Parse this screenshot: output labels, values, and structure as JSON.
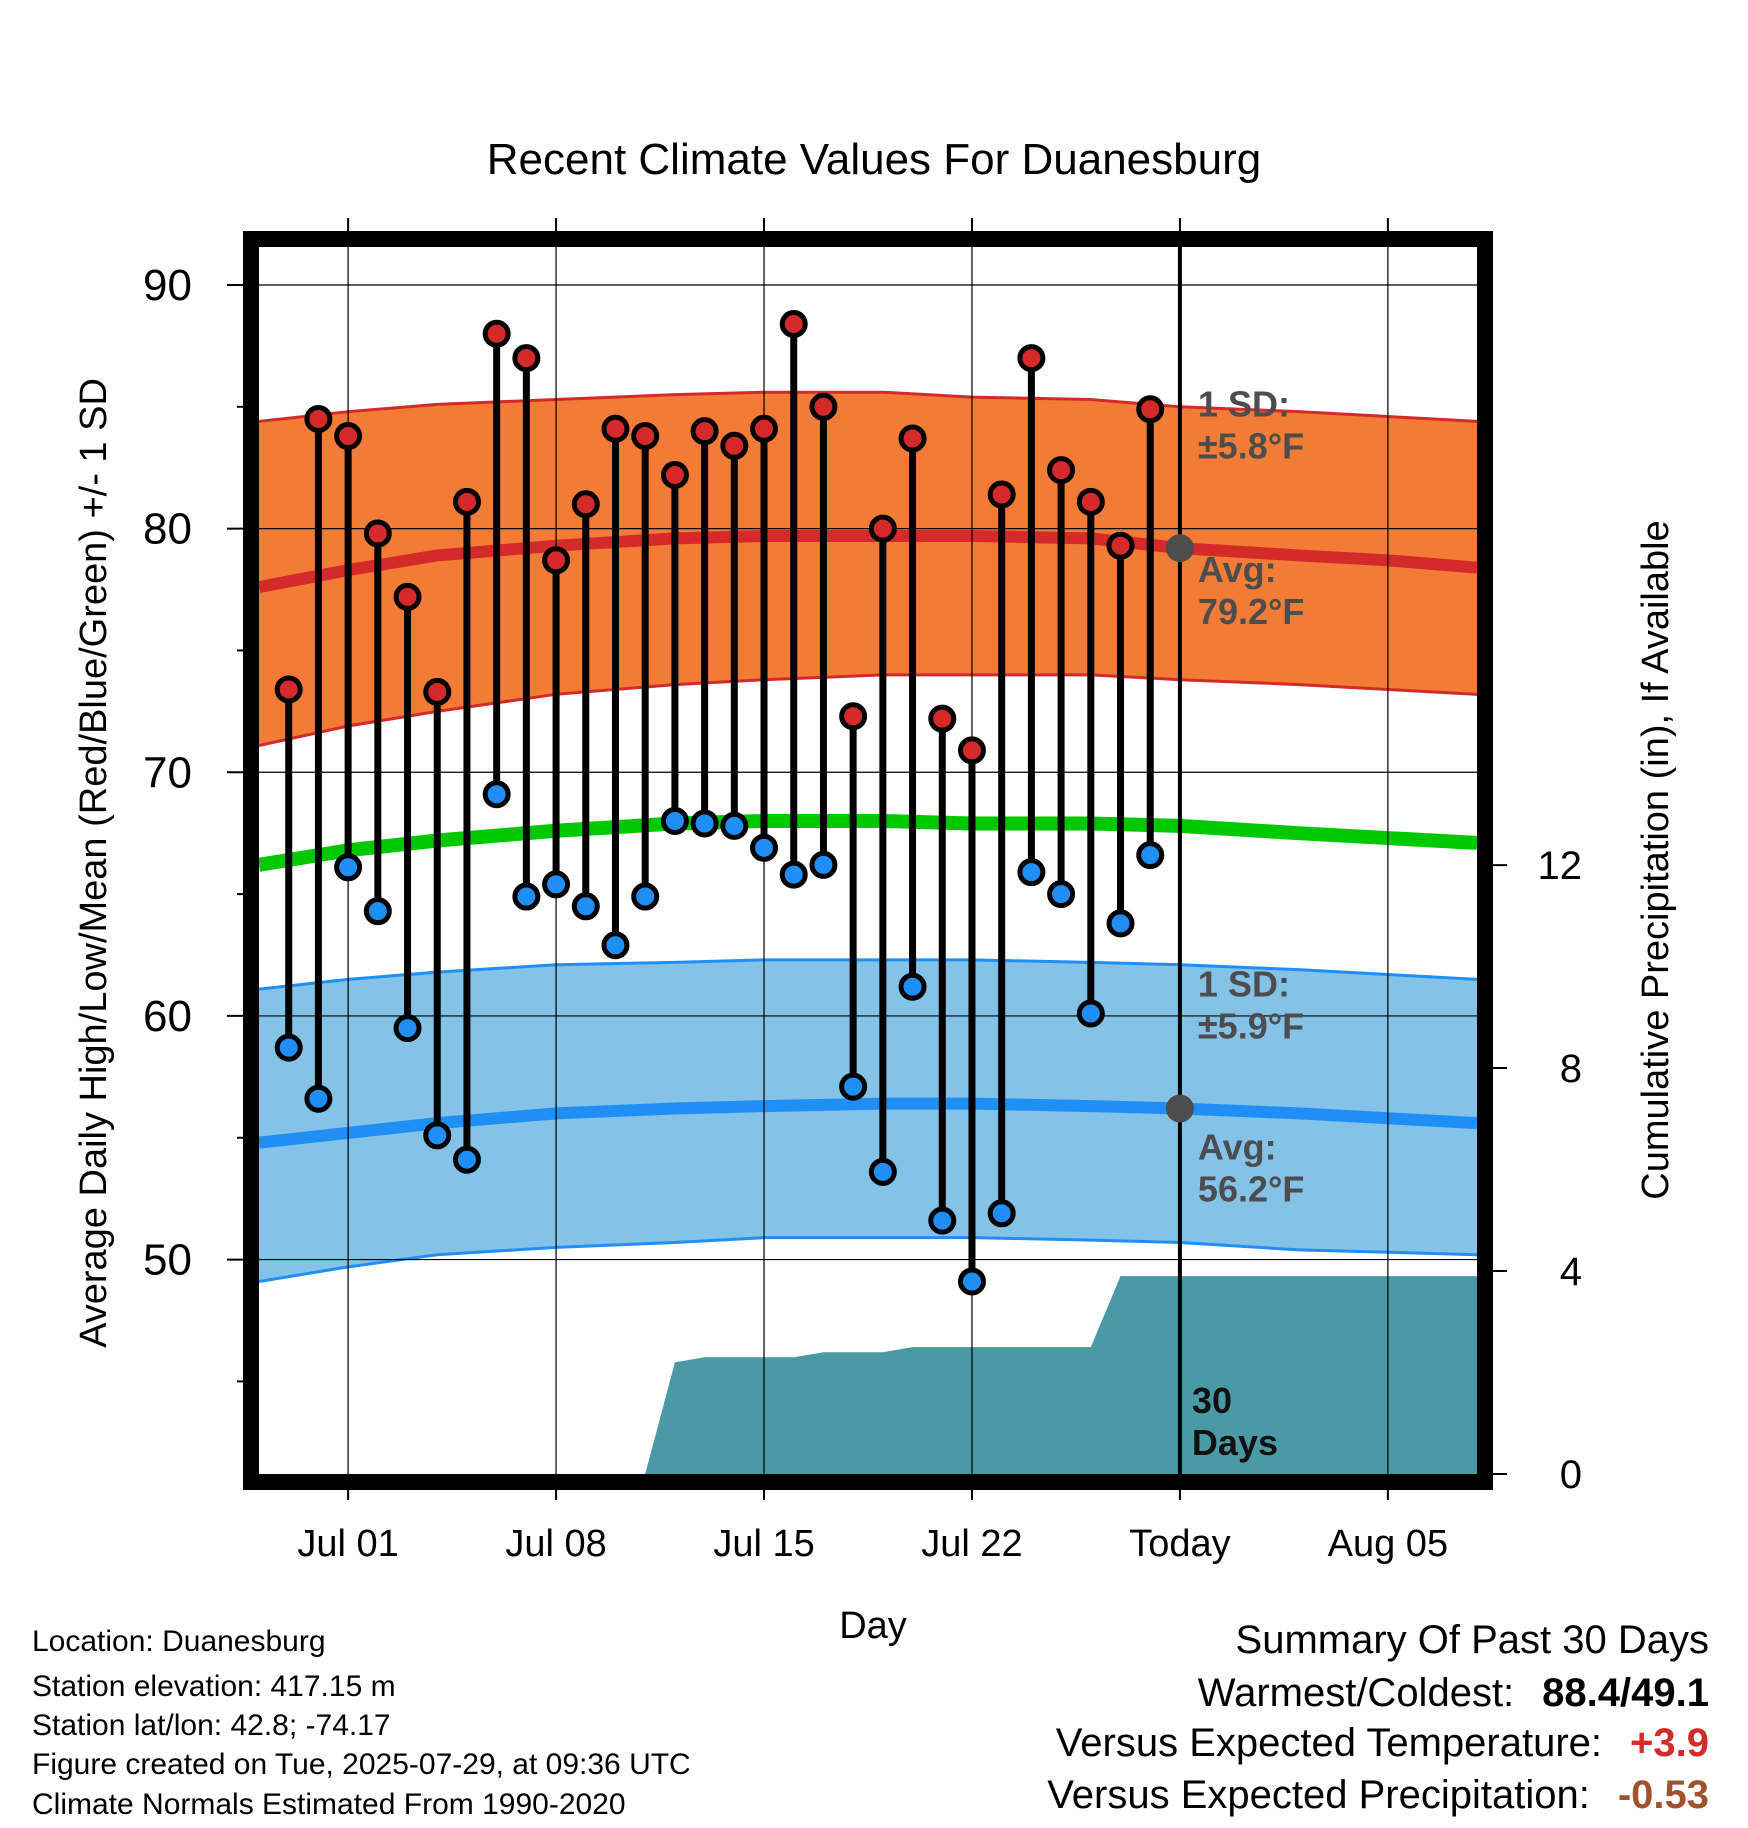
{
  "chart_data": {
    "type": "line",
    "title": "Recent Climate Values For Duanesburg",
    "xlabel": "Day",
    "ylabel": "Average Daily High/Low/Mean (Red/Blue/Green) +/- 1 SD",
    "ylabel_right": "Cumulative Precipitation (in), If Available",
    "x_tick_labels": [
      "Jul 01",
      "Jul 08",
      "Jul 15",
      "Jul 22",
      "Today",
      "Aug 05"
    ],
    "x_ticks": [
      "2025-07-01",
      "2025-07-08",
      "2025-07-15",
      "2025-07-22",
      "2025-07-29",
      "2025-08-05"
    ],
    "xlim": [
      "2025-06-28",
      "2025-08-08"
    ],
    "ylim": [
      41.2,
      91.6
    ],
    "y_ticks": [
      50,
      60,
      70,
      80,
      90
    ],
    "y2lim": [
      0,
      24.2
    ],
    "y2_ticks": [
      0,
      4,
      8,
      12
    ],
    "grid": true,
    "today": "2025-07-29",
    "window_label": "30 Days",
    "colors": {
      "high": "#d42a2a",
      "low": "#1f8ff5",
      "mean": "#00c800",
      "high_band": "#f27c35",
      "low_band": "#84c2e8",
      "precip": "#4a9aa5",
      "marker_fill_high": "#d42a2a",
      "marker_fill_low": "#1f8ff5"
    },
    "normals": {
      "dates": [
        "2025-06-28",
        "2025-07-01",
        "2025-07-04",
        "2025-07-08",
        "2025-07-12",
        "2025-07-15",
        "2025-07-19",
        "2025-07-22",
        "2025-07-26",
        "2025-07-29",
        "2025-08-02",
        "2025-08-05",
        "2025-08-08"
      ],
      "avg_high": [
        77.6,
        78.3,
        78.9,
        79.3,
        79.6,
        79.7,
        79.7,
        79.7,
        79.6,
        79.2,
        78.9,
        78.7,
        78.4
      ],
      "avg_high_upper": [
        84.4,
        84.8,
        85.1,
        85.3,
        85.5,
        85.6,
        85.6,
        85.4,
        85.3,
        85.0,
        84.8,
        84.6,
        84.4
      ],
      "avg_high_lower": [
        71.1,
        71.9,
        72.5,
        73.2,
        73.6,
        73.8,
        74.0,
        74.0,
        74.0,
        73.8,
        73.6,
        73.4,
        73.2
      ],
      "avg_mean": [
        66.2,
        66.8,
        67.2,
        67.6,
        67.9,
        68.0,
        68.0,
        67.9,
        67.9,
        67.8,
        67.5,
        67.3,
        67.1
      ],
      "avg_low": [
        54.8,
        55.2,
        55.6,
        56.0,
        56.2,
        56.3,
        56.4,
        56.4,
        56.3,
        56.2,
        56.0,
        55.8,
        55.6
      ],
      "avg_low_upper": [
        61.1,
        61.5,
        61.8,
        62.1,
        62.2,
        62.3,
        62.3,
        62.3,
        62.2,
        62.1,
        61.9,
        61.7,
        61.5
      ],
      "avg_low_lower": [
        49.1,
        49.7,
        50.2,
        50.5,
        50.7,
        50.9,
        50.9,
        50.9,
        50.8,
        50.7,
        50.4,
        50.3,
        50.2
      ]
    },
    "series": [
      {
        "name": "High",
        "dates": [
          "2025-06-29",
          "2025-06-30",
          "2025-07-01",
          "2025-07-02",
          "2025-07-03",
          "2025-07-04",
          "2025-07-05",
          "2025-07-06",
          "2025-07-07",
          "2025-07-08",
          "2025-07-09",
          "2025-07-10",
          "2025-07-11",
          "2025-07-12",
          "2025-07-13",
          "2025-07-14",
          "2025-07-15",
          "2025-07-16",
          "2025-07-17",
          "2025-07-18",
          "2025-07-19",
          "2025-07-20",
          "2025-07-21",
          "2025-07-22",
          "2025-07-23",
          "2025-07-24",
          "2025-07-25",
          "2025-07-26",
          "2025-07-27",
          "2025-07-28"
        ],
        "values": [
          73.4,
          84.5,
          83.8,
          79.8,
          77.2,
          73.3,
          81.1,
          88.0,
          87.0,
          78.7,
          81.0,
          84.1,
          83.8,
          82.2,
          84.0,
          83.4,
          84.1,
          88.4,
          85.0,
          72.3,
          80.0,
          83.7,
          72.2,
          70.9,
          81.4,
          87.0,
          82.4,
          81.1,
          79.3,
          84.9
        ]
      },
      {
        "name": "Low",
        "dates": [
          "2025-06-29",
          "2025-06-30",
          "2025-07-01",
          "2025-07-02",
          "2025-07-03",
          "2025-07-04",
          "2025-07-05",
          "2025-07-06",
          "2025-07-07",
          "2025-07-08",
          "2025-07-09",
          "2025-07-10",
          "2025-07-11",
          "2025-07-12",
          "2025-07-13",
          "2025-07-14",
          "2025-07-15",
          "2025-07-16",
          "2025-07-17",
          "2025-07-18",
          "2025-07-19",
          "2025-07-20",
          "2025-07-21",
          "2025-07-22",
          "2025-07-23",
          "2025-07-24",
          "2025-07-25",
          "2025-07-26",
          "2025-07-27",
          "2025-07-28"
        ],
        "values": [
          58.7,
          56.6,
          66.1,
          64.3,
          59.5,
          55.1,
          54.1,
          69.1,
          64.9,
          65.4,
          64.5,
          62.9,
          64.9,
          68.0,
          67.9,
          67.8,
          66.9,
          65.8,
          66.2,
          57.1,
          53.6,
          61.2,
          51.6,
          49.1,
          51.9,
          65.9,
          65.0,
          60.1,
          63.8,
          66.6
        ]
      }
    ],
    "precip": {
      "dates": [
        "2025-07-11",
        "2025-07-12",
        "2025-07-13",
        "2025-07-14",
        "2025-07-15",
        "2025-07-16",
        "2025-07-17",
        "2025-07-18",
        "2025-07-19",
        "2025-07-20",
        "2025-07-21",
        "2025-07-22",
        "2025-07-23",
        "2025-07-24",
        "2025-07-25",
        "2025-07-26",
        "2025-07-27",
        "2025-07-28",
        "2025-07-29",
        "2025-08-08"
      ],
      "values": [
        0,
        2.2,
        2.3,
        2.3,
        2.3,
        2.3,
        2.4,
        2.4,
        2.4,
        2.5,
        2.5,
        2.5,
        2.5,
        2.5,
        2.5,
        2.5,
        3.9,
        3.9,
        3.9,
        3.9
      ]
    },
    "annotations": {
      "high_sd": [
        "1 SD:",
        "±5.8°F"
      ],
      "high_avg": [
        "Avg:",
        "79.2°F"
      ],
      "low_sd": [
        "1 SD:",
        "±5.9°F"
      ],
      "low_avg": [
        "Avg:",
        "56.2°F"
      ]
    }
  },
  "info": {
    "location": "Location: Duanesburg",
    "elevation": "Station elevation: 417.15 m",
    "latlon": "Station lat/lon: 42.8; -74.17",
    "created": "Figure created on Tue, 2025-07-29, at 09:36 UTC",
    "normals": "Climate Normals Estimated From 1990-2020"
  },
  "summary": {
    "title": "Summary Of Past 30 Days",
    "warm_cold_label": "Warmest/Coldest:",
    "warm_cold_value": "88.4/49.1",
    "temp_label": "Versus Expected Temperature:",
    "temp_value": "+3.9",
    "temp_color": "#d42a2a",
    "precip_label": "Versus Expected Precipitation:",
    "precip_value": "-0.53",
    "precip_color": "#a0522d"
  }
}
